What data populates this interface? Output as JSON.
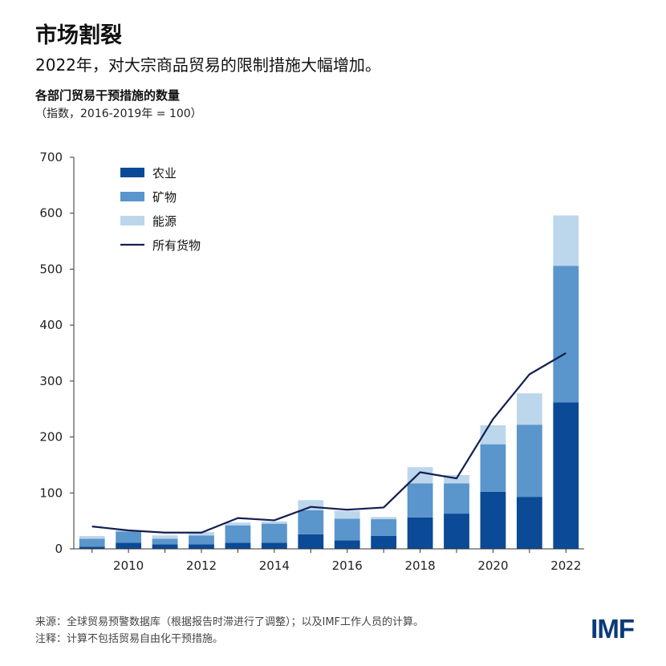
{
  "header": {
    "title": "市场割裂",
    "subtitle": "2022年，对大宗商品贸易的限制措施大幅增加。",
    "y_title": "各部门贸易干预措施的数量",
    "y_subtitle": "（指数，2016-2019年 = 100）"
  },
  "footer": {
    "source": "来源：全球贸易预警数据库（根据报告时滞进行了调整）；以及IMF工作人员的计算。",
    "note": "注释：计算不包括贸易自由化干预措施。",
    "logo": "IMF"
  },
  "colors": {
    "agriculture": "#0a4a96",
    "minerals": "#5a95cc",
    "energy": "#bcd6ec",
    "all_goods": "#13204f",
    "axis": "#333333"
  },
  "chart_data": {
    "type": "bar",
    "stacked": true,
    "years": [
      2009,
      2010,
      2011,
      2012,
      2013,
      2014,
      2015,
      2016,
      2017,
      2018,
      2019,
      2020,
      2021,
      2022
    ],
    "series": [
      {
        "name": "农业",
        "key": "agriculture",
        "values": [
          4,
          11,
          8,
          8,
          11,
          11,
          26,
          15,
          23,
          56,
          63,
          102,
          93,
          262
        ]
      },
      {
        "name": "矿物",
        "key": "minerals",
        "values": [
          14,
          20,
          10,
          16,
          31,
          34,
          43,
          39,
          30,
          61,
          54,
          85,
          129,
          244
        ]
      },
      {
        "name": "能源",
        "key": "energy",
        "values": [
          5,
          2,
          6,
          6,
          5,
          4,
          18,
          14,
          4,
          29,
          15,
          34,
          56,
          90
        ]
      }
    ],
    "line": {
      "name": "所有货物",
      "key": "all_goods",
      "values": [
        40,
        33,
        29,
        29,
        55,
        51,
        75,
        70,
        74,
        137,
        126,
        232,
        312,
        350
      ]
    },
    "legend": [
      "农业",
      "矿物",
      "能源",
      "所有货物"
    ],
    "legend_position": "top-left",
    "ylim": [
      0,
      700
    ],
    "yticks": [
      0,
      100,
      200,
      300,
      400,
      500,
      600,
      700
    ],
    "xtick_labels": [
      "2010",
      "2012",
      "2014",
      "2016",
      "2018",
      "2020",
      "2022"
    ]
  }
}
